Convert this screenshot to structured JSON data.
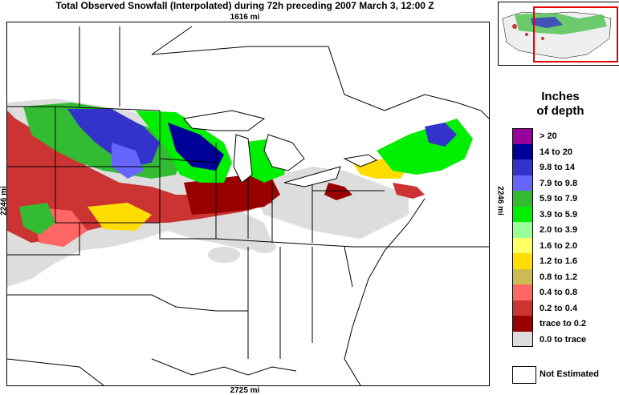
{
  "title": "Total Observed Snowfall (Interpolated) during 72h preceding 2007 March 3, 12:00 Z",
  "scale": {
    "top": "1616 mi",
    "bottom": "2725 mi",
    "left": "2246 mi",
    "right": "2246 mi"
  },
  "legend": {
    "title_line1": "Inches",
    "title_line2": "of depth",
    "items": [
      {
        "label": "> 20",
        "color": "#990099"
      },
      {
        "label": "14 to 20",
        "color": "#000099"
      },
      {
        "label": "9.8 to 14",
        "color": "#3333cc"
      },
      {
        "label": "7.9 to 9.8",
        "color": "#6666ff"
      },
      {
        "label": "5.9 to 7.9",
        "color": "#33bb33"
      },
      {
        "label": "3.9 to 5.9",
        "color": "#00ee00"
      },
      {
        "label": "2.0 to 3.9",
        "color": "#99ff99"
      },
      {
        "label": "1.6 to 2.0",
        "color": "#ffff66"
      },
      {
        "label": "1.2 to 1.6",
        "color": "#ffdd00"
      },
      {
        "label": "0.8 to 1.2",
        "color": "#ccbb55"
      },
      {
        "label": "0.4 to 0.8",
        "color": "#ff6666"
      },
      {
        "label": "0.2 to 0.4",
        "color": "#cc3333"
      },
      {
        "label": "trace to 0.2",
        "color": "#990000"
      },
      {
        "label": "0.0 to trace",
        "color": "#dddddd"
      }
    ],
    "not_estimated": "Not Estimated"
  }
}
